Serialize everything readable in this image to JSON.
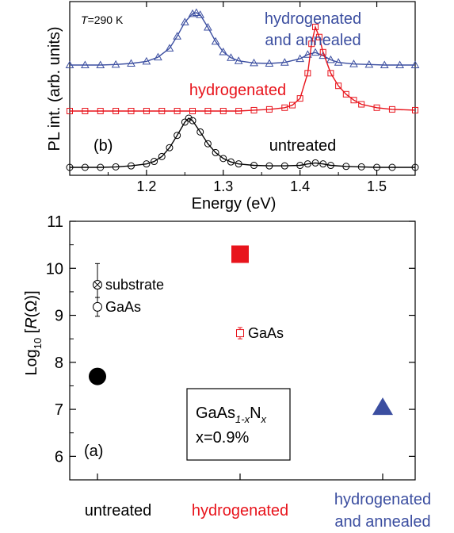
{
  "colors": {
    "untreated": "#000000",
    "hydrogenated": "#e8141c",
    "annealed": "#3b4ea0"
  },
  "chart_data": [
    {
      "panel": "(b)",
      "type": "line",
      "annotation": "T=290 K",
      "xlabel": "Energy (eV)",
      "ylabel": "PL int. (arb. units)",
      "xlim": [
        1.1,
        1.55
      ],
      "xticks": [
        "1.2",
        "1.3",
        "1.4",
        "1.5"
      ],
      "series": [
        {
          "name": "hydrogenated and annealed",
          "color": "#3b4ea0",
          "marker": "triangle",
          "x": [
            1.1,
            1.12,
            1.14,
            1.16,
            1.18,
            1.2,
            1.215,
            1.23,
            1.24,
            1.25,
            1.26,
            1.265,
            1.27,
            1.28,
            1.29,
            1.3,
            1.31,
            1.32,
            1.34,
            1.36,
            1.38,
            1.4,
            1.41,
            1.42,
            1.43,
            1.44,
            1.45,
            1.47,
            1.49,
            1.51,
            1.53,
            1.55
          ],
          "y": [
            0.0,
            0.0,
            0.0,
            0.01,
            0.03,
            0.07,
            0.15,
            0.32,
            0.55,
            0.82,
            0.98,
            1.0,
            0.96,
            0.72,
            0.45,
            0.25,
            0.14,
            0.08,
            0.04,
            0.03,
            0.05,
            0.12,
            0.2,
            0.24,
            0.18,
            0.1,
            0.05,
            0.02,
            0.01,
            0.0,
            0.0,
            0.0
          ]
        },
        {
          "name": "hydrogenated",
          "color": "#e8141c",
          "marker": "square",
          "x": [
            1.1,
            1.12,
            1.14,
            1.16,
            1.18,
            1.2,
            1.22,
            1.24,
            1.26,
            1.28,
            1.3,
            1.32,
            1.34,
            1.36,
            1.38,
            1.39,
            1.4,
            1.41,
            1.415,
            1.42,
            1.425,
            1.43,
            1.44,
            1.45,
            1.46,
            1.47,
            1.48,
            1.5,
            1.52,
            1.55
          ],
          "y": [
            0.0,
            0.0,
            0.0,
            0.0,
            0.0,
            0.0,
            0.0,
            0.0,
            0.0,
            0.0,
            0.0,
            0.0,
            0.01,
            0.02,
            0.04,
            0.07,
            0.15,
            0.45,
            0.8,
            1.0,
            0.88,
            0.7,
            0.45,
            0.3,
            0.2,
            0.13,
            0.08,
            0.04,
            0.02,
            0.01
          ]
        },
        {
          "name": "untreated",
          "color": "#000000",
          "marker": "circle",
          "x": [
            1.1,
            1.12,
            1.14,
            1.16,
            1.18,
            1.2,
            1.21,
            1.22,
            1.23,
            1.24,
            1.25,
            1.255,
            1.26,
            1.27,
            1.28,
            1.29,
            1.3,
            1.31,
            1.32,
            1.34,
            1.36,
            1.38,
            1.4,
            1.41,
            1.42,
            1.43,
            1.44,
            1.46,
            1.48,
            1.5,
            1.52,
            1.55
          ],
          "y": [
            0.0,
            0.0,
            0.0,
            0.01,
            0.03,
            0.07,
            0.12,
            0.22,
            0.4,
            0.65,
            0.92,
            1.0,
            0.95,
            0.72,
            0.48,
            0.3,
            0.18,
            0.11,
            0.07,
            0.04,
            0.03,
            0.03,
            0.04,
            0.07,
            0.09,
            0.07,
            0.04,
            0.02,
            0.01,
            0.0,
            0.0,
            0.0
          ]
        }
      ],
      "labels": {
        "panel": "(b)",
        "annotation_italic": "T",
        "annotation_rest": "=290 K",
        "annealed_line1": "hydrogenated",
        "annealed_line2": "and annealed",
        "hydrogenated": "hydrogenated",
        "untreated": "untreated"
      }
    },
    {
      "panel": "(a)",
      "type": "scatter",
      "ylabel": "Log10 [R(Ω)]",
      "ylim": [
        5.5,
        11
      ],
      "yticks": [
        "6",
        "7",
        "8",
        "9",
        "10",
        "11"
      ],
      "categories": [
        "untreated",
        "hydrogenated",
        "hydrogenated and annealed"
      ],
      "points": [
        {
          "category": "untreated",
          "value": 7.7,
          "marker": "filled-circle",
          "color": "#000000"
        },
        {
          "category": "hydrogenated",
          "value": 10.3,
          "marker": "filled-square",
          "color": "#e8141c"
        },
        {
          "category": "hydrogenated and annealed",
          "value": 7.05,
          "marker": "filled-triangle",
          "color": "#3b4ea0"
        },
        {
          "category": "untreated",
          "value": 9.65,
          "error": 0.45,
          "marker": "crossed-circle",
          "color": "#000000",
          "label": "substrate"
        },
        {
          "category": "untreated",
          "value": 9.18,
          "error": 0.2,
          "marker": "open-circle",
          "color": "#000000",
          "label": "GaAs"
        },
        {
          "category": "hydrogenated",
          "value": 8.62,
          "error": 0.12,
          "marker": "open-square",
          "color": "#e8141c",
          "label": "GaAs"
        }
      ],
      "inset": {
        "formula_base": "GaAs",
        "formula_sub1": "1-x",
        "formula_n": "N",
        "formula_sub2": "x",
        "composition": "x=0.9%"
      },
      "labels": {
        "panel": "(a)",
        "ylabel_log": "Log",
        "ylabel_sub": "10",
        "ylabel_open": " [",
        "ylabel_italic": "R",
        "ylabel_close": "(Ω)]",
        "cat_untreated": "untreated",
        "cat_hydrogenated": "hydrogenated",
        "cat_annealed_line1": "hydrogenated",
        "cat_annealed_line2": "and annealed"
      }
    }
  ]
}
